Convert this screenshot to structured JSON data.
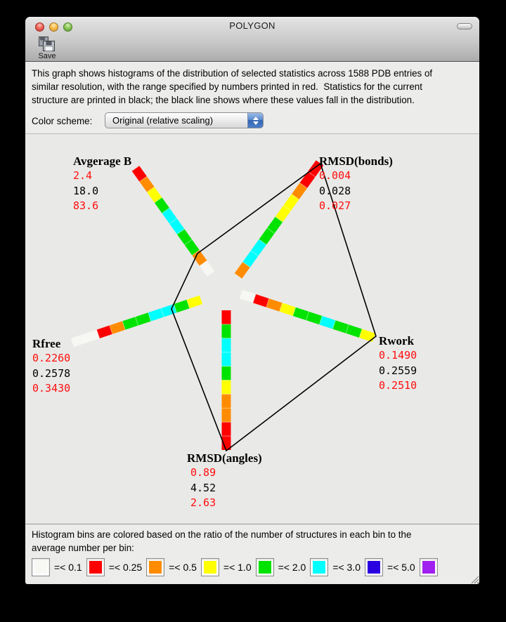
{
  "window": {
    "title": "POLYGON",
    "save_label": "Save"
  },
  "description": {
    "lines": [
      "This graph shows histograms of the distribution of selected statistics across 1588 PDB entries of",
      "similar resolution, with the range specified by numbers printed in red.  Statistics for the current",
      "structure are printed in black; the black line shows where these values fall in the distribution."
    ]
  },
  "controls": {
    "color_scheme_label": "Color scheme:",
    "color_scheme_value": "Original (relative scaling)"
  },
  "chart_data": {
    "type": "polygon-radar-histogram",
    "entries_count": 1588,
    "legend_position": "bottom",
    "colors": {
      "white": "#F7F7F4",
      "red": "#FF0000",
      "orange": "#FF8C00",
      "yellow": "#FFFF00",
      "green": "#00E300",
      "cyan": "#00FFFF",
      "blue": "#2B00E0",
      "purple": "#A020F0",
      "polygon_line": "#000000"
    },
    "axes": [
      {
        "name": "Avgerage B",
        "min": "2.4",
        "value": "18.0",
        "max": "83.6",
        "bins_outer_to_inner": [
          "red",
          "orange",
          "yellow",
          "green",
          "cyan",
          "cyan",
          "green",
          "green",
          "orange",
          "white"
        ]
      },
      {
        "name": "RMSD(bonds)",
        "min": "0.004",
        "value": "0.028",
        "max": "0.027",
        "bins_outer_to_inner": [
          "red",
          "red",
          "orange",
          "yellow",
          "yellow",
          "green",
          "green",
          "cyan",
          "cyan",
          "orange"
        ]
      },
      {
        "name": "Rwork",
        "min": "0.1490",
        "value": "0.2559",
        "max": "0.2510",
        "bins_outer_to_inner": [
          "yellow",
          "green",
          "green",
          "cyan",
          "green",
          "green",
          "yellow",
          "orange",
          "red",
          "white"
        ]
      },
      {
        "name": "RMSD(angles)",
        "min": "0.89",
        "value": "4.52",
        "max": "2.63",
        "bins_outer_to_inner": [
          "red",
          "red",
          "orange",
          "orange",
          "yellow",
          "green",
          "cyan",
          "cyan",
          "green",
          "red"
        ]
      },
      {
        "name": "Rfree",
        "min": "0.2260",
        "value": "0.2578",
        "max": "0.3430",
        "bins_outer_to_inner": [
          "white",
          "white",
          "red",
          "orange",
          "green",
          "green",
          "cyan",
          "cyan",
          "green",
          "yellow"
        ]
      }
    ]
  },
  "footer": {
    "lines": [
      "Histogram bins are colored based on the ratio of the number of structures in each bin to the",
      "average number per bin:"
    ],
    "legend": [
      {
        "color": "white",
        "label": "=< 0.1"
      },
      {
        "color": "red",
        "label": "=< 0.25"
      },
      {
        "color": "orange",
        "label": "=< 0.5"
      },
      {
        "color": "yellow",
        "label": "=< 1.0"
      },
      {
        "color": "green",
        "label": "=< 2.0"
      },
      {
        "color": "cyan",
        "label": "=< 3.0"
      },
      {
        "color": "blue",
        "label": "=< 5.0"
      },
      {
        "color": "purple",
        "label": ""
      }
    ]
  }
}
